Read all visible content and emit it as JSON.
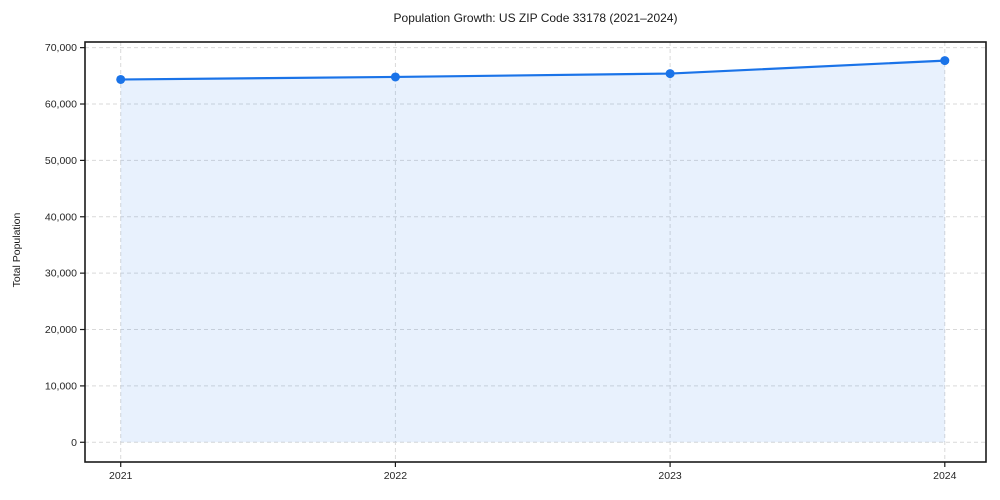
{
  "chart_data": {
    "type": "area",
    "title": "Population Growth: US ZIP Code 33178 (2021–2024)",
    "xlabel": "",
    "ylabel": "Total Population",
    "x": [
      2021,
      2022,
      2023,
      2024
    ],
    "categories": [
      "2021",
      "2022",
      "2023",
      "2024"
    ],
    "series": [
      {
        "name": "Total Population",
        "values": [
          64350,
          64800,
          65400,
          67700
        ]
      }
    ],
    "xlim": [
      2020.87,
      2024.15
    ],
    "ylim": [
      -3500,
      71000
    ],
    "xticks": [
      2021,
      2022,
      2023,
      2024
    ],
    "yticks": [
      0,
      10000,
      20000,
      30000,
      40000,
      50000,
      60000,
      70000
    ],
    "grid": true,
    "grid_style": "dashed",
    "legend": false,
    "colors": {
      "line": "#1a73e8",
      "marker": "#1a73e8",
      "fill": "rgba(26,115,232,0.10)",
      "grid": "#d9d9d9",
      "spine": "#1a1a1a",
      "tick_label": "#262626",
      "background": "#ffffff"
    }
  }
}
